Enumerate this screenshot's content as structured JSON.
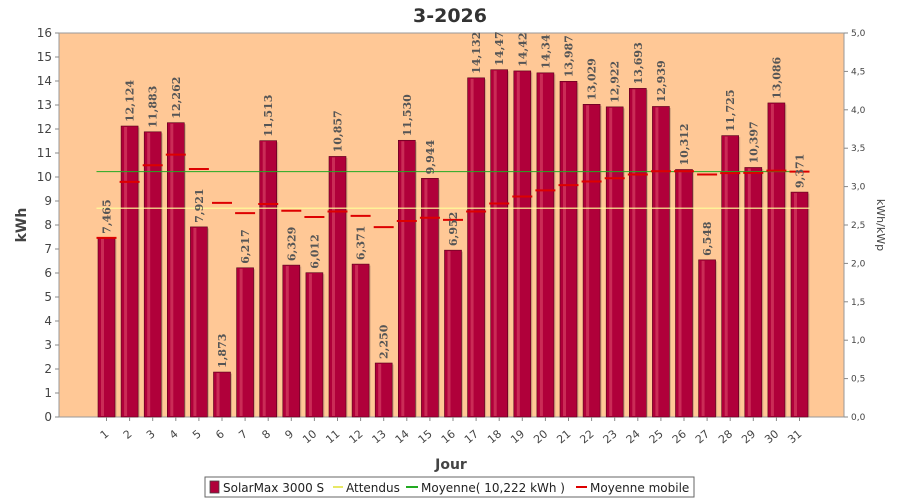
{
  "chart_data": {
    "type": "bar",
    "title": "3-2026",
    "xlabel": "Jour",
    "ylabel": "kWh",
    "y2label": "kWh/kWp",
    "ylim": [
      0,
      16
    ],
    "y2lim": [
      0.0,
      5.0
    ],
    "yticks": [
      "0",
      "1",
      "2",
      "3",
      "4",
      "5",
      "6",
      "7",
      "8",
      "9",
      "10",
      "11",
      "12",
      "13",
      "14",
      "15",
      "16"
    ],
    "y2ticks": [
      "0,0",
      "0,5",
      "1,0",
      "1,5",
      "2,0",
      "2,5",
      "3,0",
      "3,5",
      "4,0",
      "4,5",
      "5,0"
    ],
    "categories": [
      "1",
      "2",
      "3",
      "4",
      "5",
      "6",
      "7",
      "8",
      "9",
      "10",
      "11",
      "12",
      "13",
      "14",
      "15",
      "16",
      "17",
      "18",
      "19",
      "20",
      "21",
      "22",
      "23",
      "24",
      "25",
      "26",
      "27",
      "28",
      "29",
      "30",
      "31"
    ],
    "series": [
      {
        "name": "SolarMax 3000 S",
        "type": "bar",
        "color": "#b0003a",
        "values": [
          7.465,
          12.124,
          11.883,
          12.262,
          7.921,
          1.873,
          6.217,
          11.513,
          6.329,
          6.012,
          10.857,
          6.371,
          2.25,
          11.53,
          9.944,
          6.952,
          14.132,
          14.47,
          14.42,
          14.34,
          13.987,
          13.029,
          12.922,
          13.693,
          12.939,
          10.312,
          6.548,
          11.725,
          10.397,
          13.086,
          9.371
        ],
        "labels": [
          "7,465",
          "12,124",
          "11,883",
          "12,262",
          "7,921",
          "1,873",
          "6,217",
          "11,513",
          "6,329",
          "6,012",
          "10,857",
          "6,371",
          "2,250",
          "11,530",
          "9,944",
          "6,952",
          "14,132",
          "14,47",
          "14,42",
          "14,34",
          "13,987",
          "13,029",
          "12,922",
          "13,693",
          "12,939",
          "10,312",
          "6,548",
          "11,725",
          "10,397",
          "13,086",
          "9,371"
        ]
      },
      {
        "name": "Attendus",
        "type": "hline",
        "color": "#ffff99",
        "value": 8.7
      },
      {
        "name": "Moyenne( 10,222 kWh )",
        "type": "hline",
        "color": "#22aa22",
        "value": 10.222
      },
      {
        "name": "Moyenne mobile",
        "type": "step",
        "color": "#dd0000",
        "values": [
          7.465,
          9.795,
          10.49,
          10.934,
          10.331,
          8.921,
          8.496,
          8.875,
          8.592,
          8.333,
          8.563,
          8.381,
          7.909,
          8.168,
          8.3,
          8.215,
          8.563,
          8.897,
          9.188,
          9.445,
          9.661,
          9.813,
          9.95,
          10.106,
          10.238,
          10.241,
          10.105,
          10.163,
          10.171,
          10.268,
          10.222
        ]
      }
    ],
    "legend_position": "bottom",
    "grid": false
  }
}
